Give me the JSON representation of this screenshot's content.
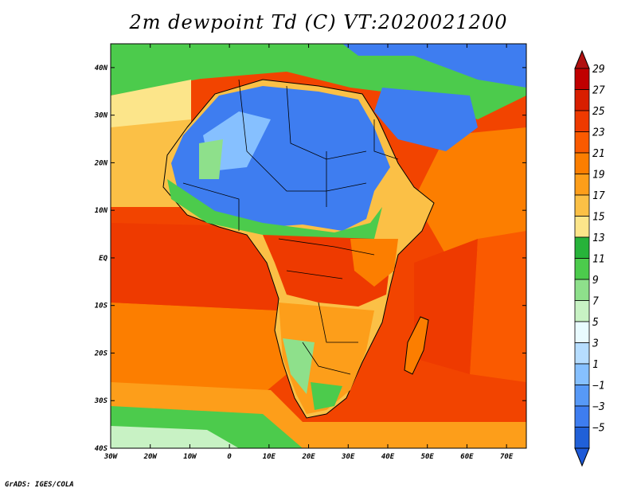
{
  "title": "2m dewpoint Td (C) VT:2020021200",
  "credit": "GrADS: IGES/COLA",
  "map": {
    "lon_ticks": [
      "30W",
      "20W",
      "10W",
      "0",
      "10E",
      "20E",
      "30E",
      "40E",
      "50E",
      "60E",
      "70E"
    ],
    "lat_ticks": [
      "40N",
      "30N",
      "20N",
      "10N",
      "EQ",
      "10S",
      "20S",
      "30S",
      "40S"
    ],
    "lon_range": [
      -30,
      75
    ],
    "lat_range": [
      -40,
      45
    ]
  },
  "colorbar": {
    "labels": [
      "29",
      "27",
      "25",
      "23",
      "21",
      "19",
      "17",
      "15",
      "13",
      "11",
      "9",
      "7",
      "5",
      "3",
      "1",
      "-1",
      "-3",
      "-5"
    ],
    "colors": [
      "#c00000",
      "#d81e00",
      "#ee3a00",
      "#fa5a00",
      "#fc7e00",
      "#fd9e1a",
      "#fbc046",
      "#fce58a",
      "#27b33a",
      "#4ccb4c",
      "#8ee08b",
      "#c8f2c4",
      "#e9fbff",
      "#b6ddff",
      "#86c0ff",
      "#5799f7",
      "#3e7df0",
      "#2060d8"
    ],
    "top_color": "#b01010",
    "bottom_color": "#1e5ad8"
  }
}
